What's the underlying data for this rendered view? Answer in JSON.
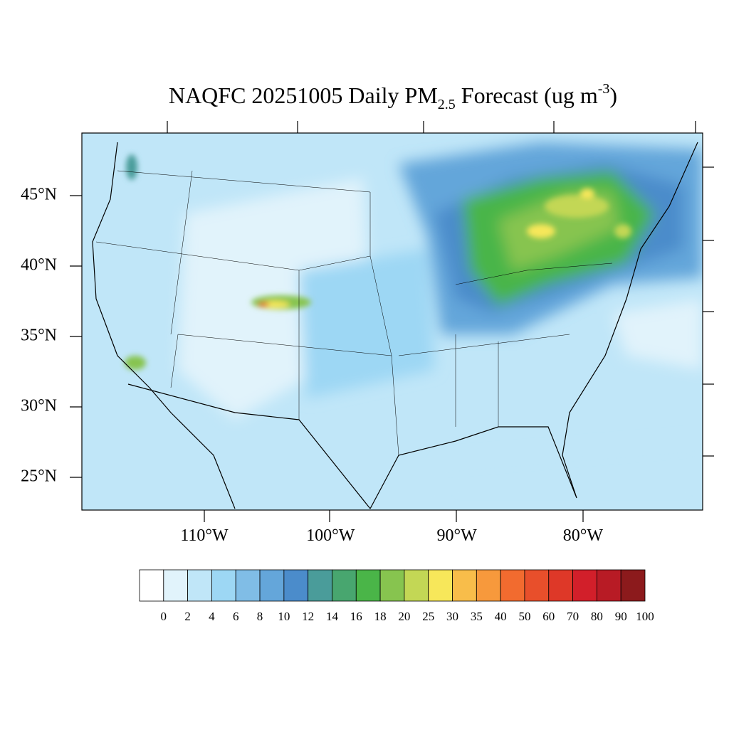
{
  "title": {
    "main": "NAQFC 20251005 Daily PM",
    "subscript": "2.5",
    "after": " Forecast (ug m",
    "superscript": "-3",
    "end": ")"
  },
  "lat_labels": [
    "45°N",
    "40°N",
    "35°N",
    "30°N",
    "25°N"
  ],
  "lon_labels": [
    "110°W",
    "100°W",
    "90°W",
    "80°W"
  ],
  "colorbar": {
    "colors": [
      "#ffffff",
      "#e1f3fb",
      "#c0e6f8",
      "#9dd7f4",
      "#80bde6",
      "#64a6da",
      "#4b8ccb",
      "#4a9c9a",
      "#48a66f",
      "#4ab548",
      "#87c44f",
      "#c3d755",
      "#f7e75a",
      "#f8bd4a",
      "#f7993c",
      "#f26b2f",
      "#e84f2b",
      "#de3828",
      "#d21f2a",
      "#b81b25",
      "#8c1a1c"
    ],
    "labels": [
      0,
      2,
      4,
      6,
      8,
      10,
      12,
      14,
      16,
      18,
      20,
      25,
      30,
      35,
      40,
      50,
      60,
      70,
      80,
      90,
      100
    ]
  }
}
